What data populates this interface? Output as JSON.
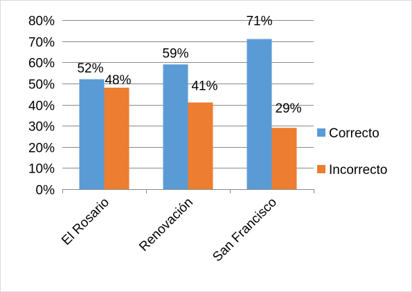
{
  "chart_data": {
    "type": "bar",
    "categories": [
      "El Rosario",
      "Renovación",
      "San Francisco"
    ],
    "series": [
      {
        "name": "Correcto",
        "values": [
          52,
          59,
          71
        ],
        "labels": [
          "52%",
          "59%",
          "71%"
        ],
        "color": "#5B9BD5"
      },
      {
        "name": "Incorrecto",
        "values": [
          48,
          41,
          29
        ],
        "labels": [
          "48%",
          "41%",
          "29%"
        ],
        "color": "#ED7D31"
      }
    ],
    "title": "",
    "xlabel": "",
    "ylabel": "",
    "ylim": [
      0,
      80
    ],
    "yticks": [
      0,
      10,
      20,
      30,
      40,
      50,
      60,
      70,
      80
    ],
    "ytick_labels": [
      "0%",
      "10%",
      "20%",
      "30%",
      "40%",
      "50%",
      "60%",
      "70%",
      "80%"
    ],
    "grid": true,
    "legend": "right",
    "category_label_rotation": "-45deg"
  }
}
